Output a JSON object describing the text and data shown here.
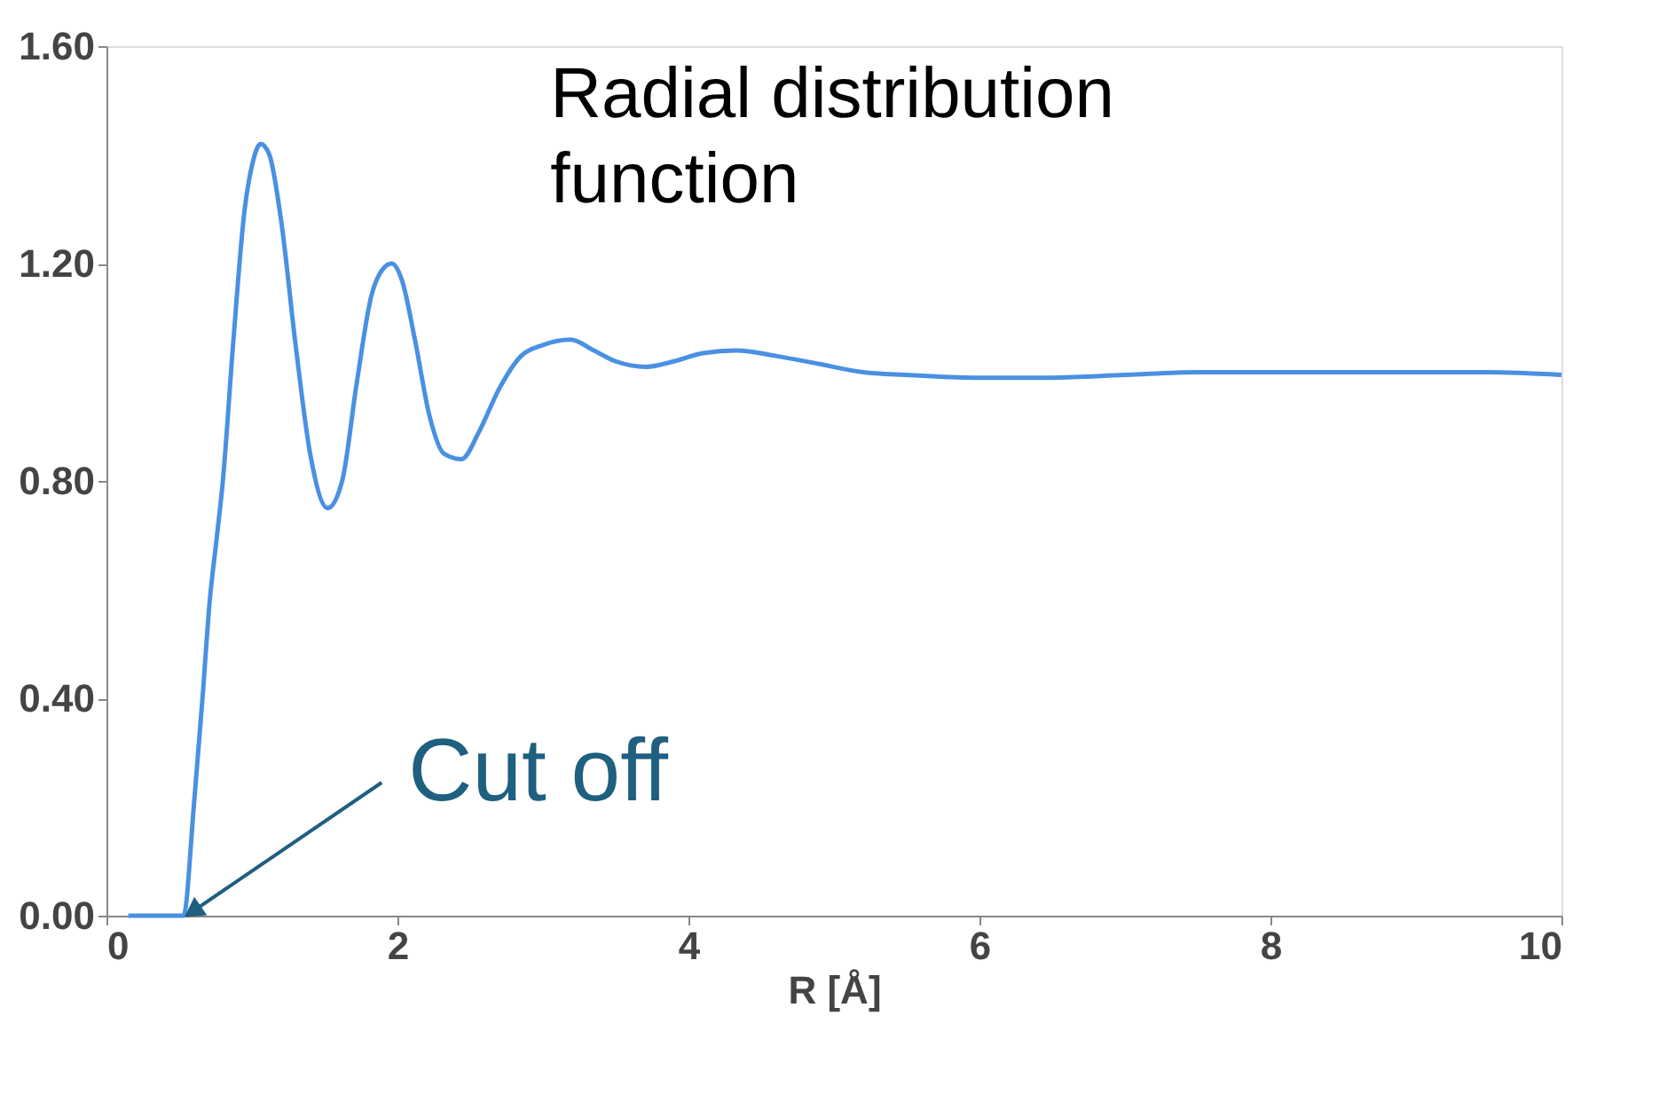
{
  "chart_data": {
    "type": "line",
    "title": "Radial distribution function",
    "xlabel": "R [Å]",
    "annotations": [
      {
        "text": "Cut off",
        "x": 0.55,
        "y": 0
      }
    ],
    "x": [
      0.15,
      0.3,
      0.45,
      0.53,
      0.6,
      0.66,
      0.71,
      0.76,
      0.8,
      0.87,
      0.95,
      1.0,
      1.06,
      1.12,
      1.2,
      1.3,
      1.4,
      1.52,
      1.62,
      1.72,
      1.82,
      1.9,
      1.96,
      2.03,
      2.12,
      2.22,
      2.32,
      2.44,
      2.56,
      2.7,
      2.85,
      3.0,
      3.19,
      3.35,
      3.5,
      3.71,
      3.9,
      4.1,
      4.33,
      4.6,
      4.9,
      5.2,
      5.5,
      5.96,
      6.5,
      7.0,
      7.5,
      8.0,
      8.5,
      9.0,
      9.5,
      10.0
    ],
    "series": [
      {
        "color": "#4a90e2",
        "values": [
          0,
          0,
          0,
          0,
          0.2,
          0.4,
          0.58,
          0.7,
          0.8,
          1.05,
          1.3,
          1.38,
          1.42,
          1.4,
          1.28,
          1.05,
          0.85,
          0.75,
          0.8,
          0.98,
          1.14,
          1.19,
          1.2,
          1.17,
          1.06,
          0.92,
          0.85,
          0.84,
          0.89,
          0.97,
          1.03,
          1.05,
          1.06,
          1.04,
          1.02,
          1.01,
          1.02,
          1.035,
          1.04,
          1.03,
          1.015,
          1.0,
          0.995,
          0.99,
          0.99,
          0.995,
          1.0,
          1.0,
          1.0,
          1.0,
          1.0,
          0.995
        ]
      }
    ],
    "xlim": [
      0,
      10
    ],
    "xticks": [
      0,
      2,
      4,
      6,
      8,
      10
    ],
    "ylim": [
      0,
      1.6
    ],
    "yticks": [
      {
        "value": 0,
        "label": "0.00"
      },
      {
        "value": 0.4,
        "label": "0.40"
      },
      {
        "value": 0.8,
        "label": "0.80"
      },
      {
        "value": 1.2,
        "label": "1.20"
      },
      {
        "value": 1.6,
        "label": "1.60"
      }
    ],
    "grid": false,
    "marker": "none",
    "line_style": "solid"
  }
}
